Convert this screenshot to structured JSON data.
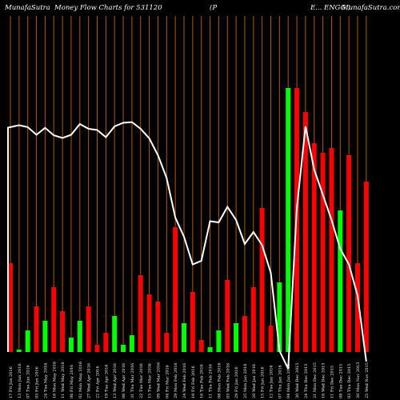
{
  "header": {
    "site": "MunafaSutra",
    "title": "Money Flow  Charts for 531120",
    "company": "(P",
    "company_tail": "E... ENGG.)",
    "site_right": "MunafaSutra.com"
  },
  "chart_data": {
    "type": "bar",
    "title": "Money Flow  Charts for 531120",
    "grid": true,
    "series": [
      {
        "type": "bar",
        "values": [
          0.37,
          0.01,
          0.09,
          0.19,
          0.13,
          0.27,
          0.17,
          0.06,
          0.13,
          0.19,
          0.03,
          0.08,
          0.15,
          0.03,
          0.07,
          0.32,
          0.24,
          0.21,
          0.08,
          0.52,
          0.12,
          0.25,
          0.05,
          0.02,
          0.09,
          0.3,
          0.12,
          0.15,
          0.27,
          0.6,
          0.11,
          0.29,
          1.1,
          1.1,
          1.0,
          0.87,
          0.83,
          0.85,
          0.59,
          0.82,
          0.37,
          0.71
        ]
      },
      {
        "type": "line",
        "values": [
          0.935,
          0.945,
          0.937,
          0.905,
          0.934,
          0.903,
          0.892,
          0.905,
          0.95,
          0.93,
          0.925,
          0.895,
          0.94,
          0.955,
          0.958,
          0.93,
          0.89,
          0.82,
          0.725,
          0.56,
          0.48,
          0.365,
          0.38,
          0.545,
          0.54,
          0.605,
          0.55,
          0.45,
          0.5,
          0.445,
          0.33,
          0.005,
          -0.07,
          0.6,
          0.94,
          0.76,
          0.655,
          0.55,
          0.43,
          0.365,
          0.235,
          -0.04
        ]
      }
    ],
    "bar_colors": [
      "red",
      "green",
      "green",
      "red",
      "green",
      "red",
      "red",
      "green",
      "green",
      "red",
      "red",
      "red",
      "green",
      "green",
      "green",
      "red",
      "red",
      "red",
      "red",
      "red",
      "green",
      "red",
      "red",
      "green",
      "green",
      "red",
      "green",
      "red",
      "red",
      "red",
      "red",
      "green",
      "green",
      "red",
      "red",
      "red",
      "red",
      "red",
      "green",
      "red",
      "red",
      "red"
    ],
    "colors": {
      "red": "#ff0000",
      "green": "#00ff00",
      "grid": "#b35900",
      "line": "#ffffff"
    },
    "categories": [
      "17 Fri Jun 2016",
      "13 Mon Jun 2016",
      "07 Tue Jun 2016",
      "03 Fri Jun 2016",
      "24 Tue May 2016",
      "16 Mon May 2016",
      "11 Wed May 2016",
      "06 Fri May 2016",
      "02 Mon May 2016",
      "27 Wed Apr 2016",
      "22 Fri Apr 2016",
      "19 Tue Apr 2016",
      "13 Wed Apr 2016",
      "06 Wed Apr 2016",
      "31 Thu Mar 2016",
      "22 Tue Mar 2016",
      "15 Tue Mar 2016",
      "09 Wed Mar 2016",
      "04 Fri Mar 2016",
      "29 Mon Feb 2016",
      "24 Wed Feb 2016",
      "19 Fri Feb 2016",
      "16 Tue Feb 2016",
      "11 Thu Feb 2016",
      "08 Mon Feb 2016",
      "03 Wed Feb 2016",
      "29 Fri Jan 2016",
      "25 Mon Jan 2016",
      "20 Wed Jan 2016",
      "15 Fri Jan 2016",
      "12 Tue Jan 2016",
      "07 Thu Jan 2016",
      "04 Mon Jan 2016",
      "30 Wed Dec 2015",
      "24 Thu Dec 2015",
      "21 Mon Dec 2015",
      "16 Wed Dec 2015",
      "11 Fri Dec 2015",
      "08 Tue Dec 2015",
      "03 Thu Dec 2015",
      "30 Mon Nov 2015",
      "25 Wed Nov 2015"
    ]
  }
}
